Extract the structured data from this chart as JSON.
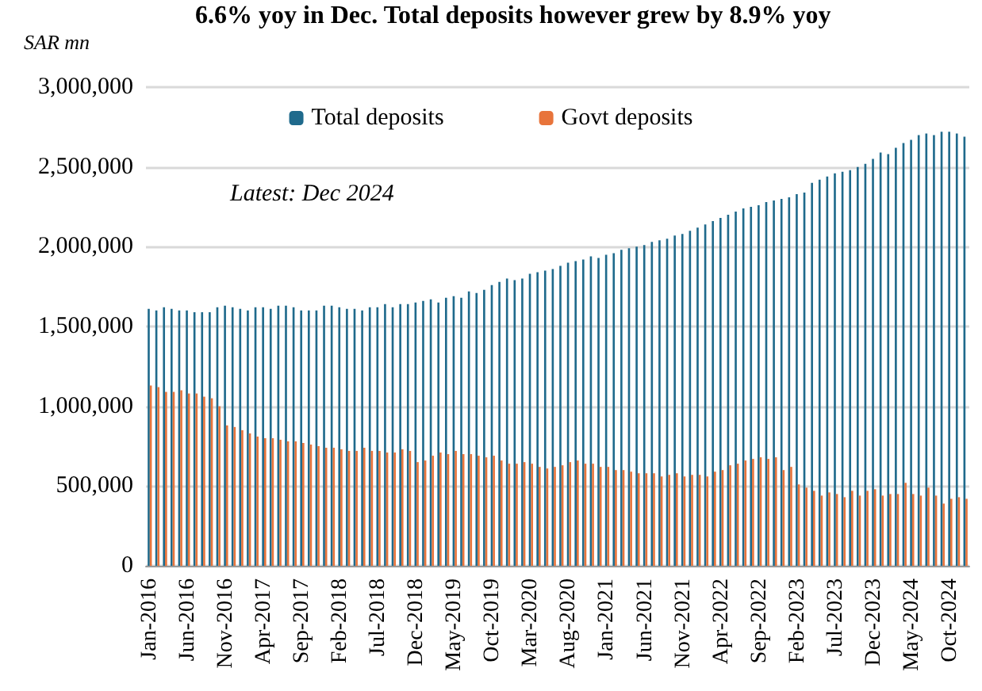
{
  "chart_data": {
    "type": "bar",
    "title": "6.6% yoy in Dec. Total deposits however grew by 8.9% yoy",
    "ylabel": "SAR mn",
    "annotations": [
      "Latest: Dec 2024"
    ],
    "categories": [
      "Jan-2016",
      null,
      null,
      null,
      null,
      "Jun-2016",
      null,
      null,
      null,
      null,
      "Nov-2016",
      null,
      null,
      null,
      null,
      "Apr-2017",
      null,
      null,
      null,
      null,
      "Sep-2017",
      null,
      null,
      null,
      null,
      "Feb-2018",
      null,
      null,
      null,
      null,
      "Jul-2018",
      null,
      null,
      null,
      null,
      "Dec-2018",
      null,
      null,
      null,
      null,
      "May-2019",
      null,
      null,
      null,
      null,
      "Oct-2019",
      null,
      null,
      null,
      null,
      "Mar-2020",
      null,
      null,
      null,
      null,
      "Aug-2020",
      null,
      null,
      null,
      null,
      "Jan-2021",
      null,
      null,
      null,
      null,
      "Jun-2021",
      null,
      null,
      null,
      null,
      "Nov-2021",
      null,
      null,
      null,
      null,
      "Apr-2022",
      null,
      null,
      null,
      null,
      "Sep-2022",
      null,
      null,
      null,
      null,
      "Feb-2023",
      null,
      null,
      null,
      null,
      "Jul-2023",
      null,
      null,
      null,
      null,
      "Dec-2023",
      null,
      null,
      null,
      null,
      "May-2024",
      null,
      null,
      null,
      null,
      "Oct-2024",
      null,
      null
    ],
    "series": [
      {
        "name": "Total deposits",
        "color": "#1f6a8c",
        "values": [
          1610000,
          1600000,
          1620000,
          1610000,
          1600000,
          1600000,
          1590000,
          1590000,
          1590000,
          1620000,
          1630000,
          1620000,
          1610000,
          1600000,
          1620000,
          1620000,
          1610000,
          1630000,
          1630000,
          1620000,
          1600000,
          1600000,
          1600000,
          1630000,
          1630000,
          1620000,
          1610000,
          1610000,
          1600000,
          1620000,
          1620000,
          1640000,
          1620000,
          1640000,
          1640000,
          1650000,
          1660000,
          1670000,
          1650000,
          1680000,
          1690000,
          1680000,
          1720000,
          1710000,
          1730000,
          1760000,
          1780000,
          1800000,
          1790000,
          1800000,
          1830000,
          1840000,
          1850000,
          1860000,
          1880000,
          1900000,
          1910000,
          1920000,
          1940000,
          1930000,
          1950000,
          1960000,
          1980000,
          1990000,
          2000000,
          2010000,
          2030000,
          2040000,
          2050000,
          2070000,
          2080000,
          2100000,
          2120000,
          2140000,
          2160000,
          2180000,
          2200000,
          2220000,
          2240000,
          2250000,
          2260000,
          2280000,
          2290000,
          2300000,
          2310000,
          2330000,
          2340000,
          2400000,
          2420000,
          2440000,
          2460000,
          2470000,
          2480000,
          2500000,
          2520000,
          2550000,
          2590000,
          2580000,
          2620000,
          2650000,
          2670000,
          2700000,
          2710000,
          2700000,
          2720000,
          2720000,
          2710000,
          2690000
        ]
      },
      {
        "name": "Govt deposits",
        "color": "#e8743b",
        "values": [
          1130000,
          1120000,
          1090000,
          1090000,
          1100000,
          1080000,
          1080000,
          1060000,
          1050000,
          1000000,
          880000,
          870000,
          850000,
          830000,
          810000,
          800000,
          800000,
          790000,
          780000,
          780000,
          770000,
          760000,
          750000,
          740000,
          740000,
          730000,
          720000,
          720000,
          740000,
          720000,
          720000,
          710000,
          710000,
          730000,
          720000,
          650000,
          660000,
          690000,
          710000,
          700000,
          720000,
          700000,
          700000,
          690000,
          680000,
          690000,
          660000,
          640000,
          640000,
          650000,
          640000,
          620000,
          610000,
          620000,
          630000,
          650000,
          660000,
          640000,
          640000,
          620000,
          620000,
          600000,
          600000,
          590000,
          580000,
          580000,
          580000,
          560000,
          570000,
          580000,
          560000,
          570000,
          570000,
          560000,
          590000,
          600000,
          630000,
          640000,
          660000,
          670000,
          680000,
          670000,
          680000,
          600000,
          620000,
          510000,
          490000,
          470000,
          440000,
          460000,
          450000,
          430000,
          470000,
          440000,
          470000,
          480000,
          440000,
          450000,
          450000,
          520000,
          450000,
          440000,
          490000,
          440000,
          390000,
          420000,
          430000,
          420000
        ]
      }
    ],
    "ylim": [
      0,
      3000000
    ],
    "yticks": [
      0,
      {
        "value": 500000,
        "label": "500,000"
      },
      {
        "value": 1000000,
        "label": "1,000,000"
      },
      {
        "value": 1500000,
        "label": "1,500,000"
      },
      {
        "value": 2000000,
        "label": "2,000,000"
      },
      {
        "value": 2500000,
        "label": "2,500,000"
      },
      {
        "value": 3000000,
        "label": "3,000,000"
      }
    ],
    "grid": "y",
    "legend": "top"
  }
}
